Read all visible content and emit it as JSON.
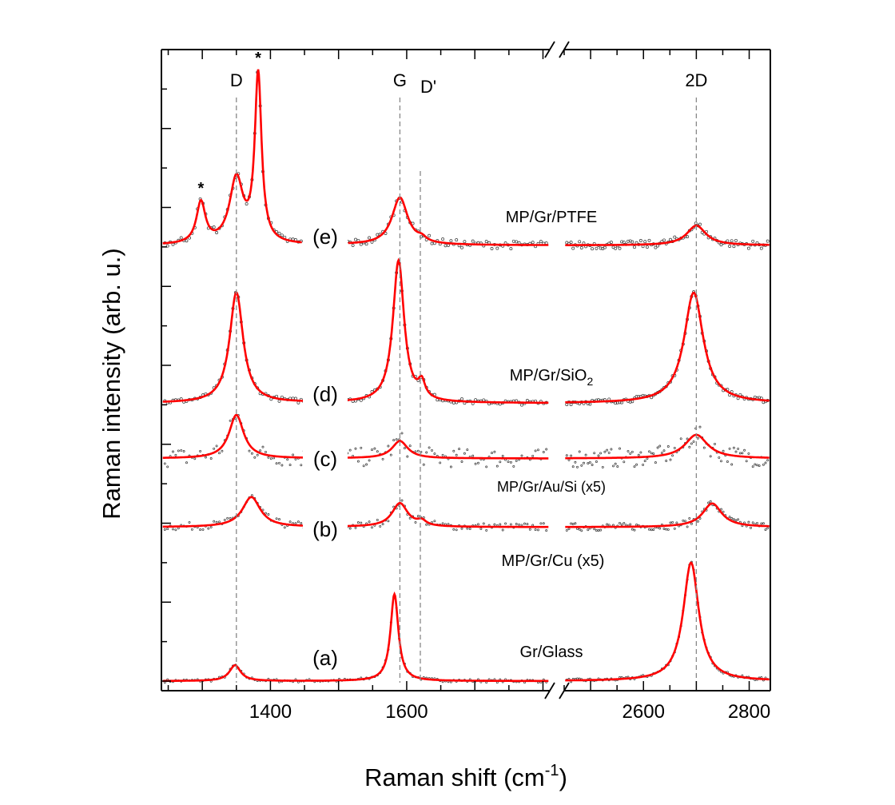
{
  "chart_data": {
    "type": "line",
    "title": "",
    "xlabel": "Raman shift (cm",
    "xlabel_sup": "-1",
    "xlabel_end": ")",
    "ylabel": "Raman intensity (arb. u.)",
    "x_segments": [
      {
        "xlim": [
          1240,
          1810
        ],
        "ticks": [
          "1400",
          "1600"
        ],
        "tick_values": [
          1400,
          1600
        ]
      },
      {
        "xlim": [
          2450,
          2840
        ],
        "ticks": [
          "2600",
          "2800"
        ],
        "tick_values": [
          2600,
          2800
        ]
      }
    ],
    "axis_break": "//",
    "ylim": [
      0,
      8
    ],
    "y_tick_labels_shown": false,
    "peak_markers": [
      {
        "label": "D",
        "x": 1350
      },
      {
        "label": "G",
        "x": 1590
      },
      {
        "label": "D'",
        "x": 1620
      },
      {
        "label": "2D",
        "x": 2700
      }
    ],
    "series": [
      {
        "name": "Gr/Glass",
        "panel": "(a)",
        "baseline": 0.0,
        "peaks": [
          {
            "x": 1348,
            "h": 0.2,
            "w": 10
          },
          {
            "x": 1582,
            "h": 1.1,
            "w": 7
          },
          {
            "x": 2690,
            "h": 1.5,
            "w": 18
          }
        ]
      },
      {
        "name": "MP/Gr/Cu (x5)",
        "panel": "(b)",
        "baseline": 1.95,
        "peaks": [
          {
            "x": 1372,
            "h": 0.38,
            "w": 16
          },
          {
            "x": 1590,
            "h": 0.3,
            "w": 14
          },
          {
            "x": 1622,
            "h": 0.06,
            "w": 8
          },
          {
            "x": 2730,
            "h": 0.3,
            "w": 22
          }
        ]
      },
      {
        "name": "MP/Gr/Au/Si (x5)",
        "panel": "(c)",
        "baseline": 2.82,
        "peaks": [
          {
            "x": 1350,
            "h": 0.55,
            "w": 13
          },
          {
            "x": 1590,
            "h": 0.22,
            "w": 14
          },
          {
            "x": 2700,
            "h": 0.3,
            "w": 26
          }
        ]
      },
      {
        "name": "MP/Gr/SiO",
        "name_sub": "2",
        "panel": "(d)",
        "baseline": 3.52,
        "peaks": [
          {
            "x": 1350,
            "h": 1.4,
            "w": 12
          },
          {
            "x": 1588,
            "h": 1.8,
            "w": 10
          },
          {
            "x": 1622,
            "h": 0.2,
            "w": 6
          },
          {
            "x": 2695,
            "h": 1.4,
            "w": 22
          }
        ]
      },
      {
        "name": "MP/Gr/PTFE",
        "panel": "(e)",
        "baseline": 5.52,
        "peaks": [
          {
            "x": 1298,
            "h": 0.52,
            "w": 8
          },
          {
            "x": 1350,
            "h": 0.82,
            "w": 12
          },
          {
            "x": 1382,
            "h": 2.12,
            "w": 6
          },
          {
            "x": 1590,
            "h": 0.6,
            "w": 14
          },
          {
            "x": 1622,
            "h": 0.05,
            "w": 8
          },
          {
            "x": 2700,
            "h": 0.25,
            "w": 22
          }
        ]
      }
    ],
    "star_markers": [
      {
        "label": "*",
        "x": 1298
      },
      {
        "label": "*",
        "x": 1382
      }
    ],
    "colors": {
      "fit": "#ff0000",
      "data": "#333333",
      "guide": "#888888",
      "axis": "#000000"
    }
  }
}
